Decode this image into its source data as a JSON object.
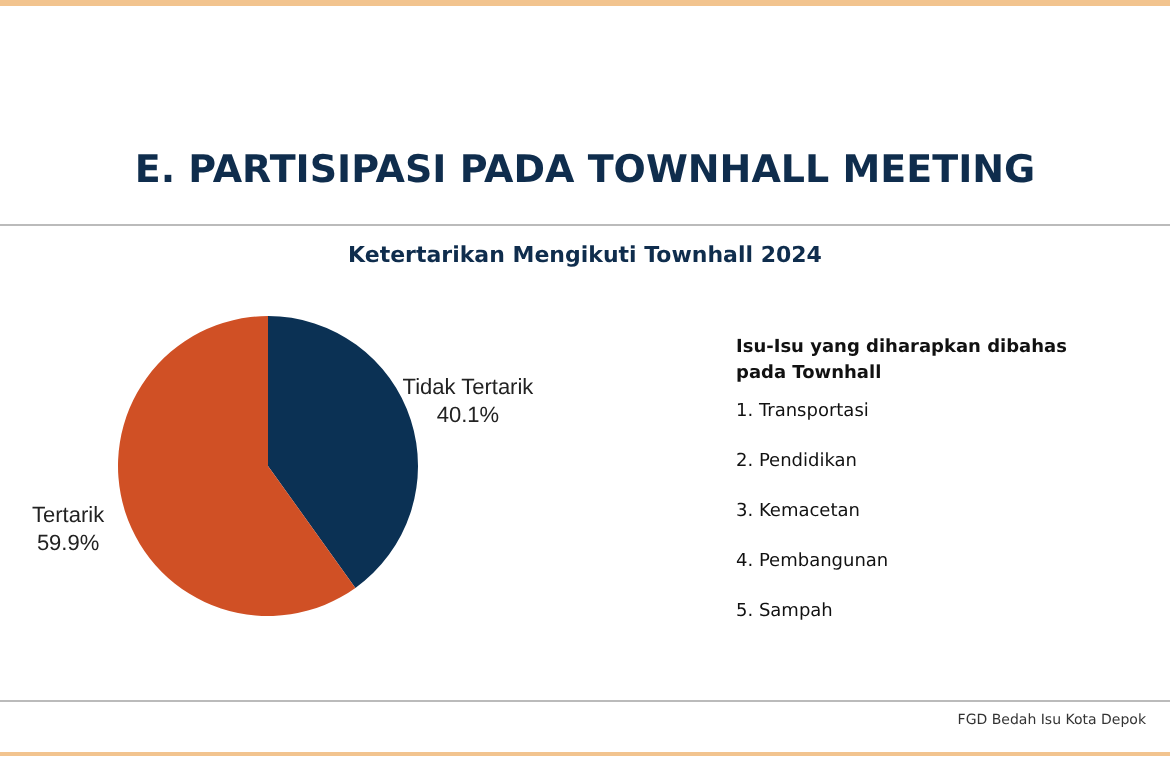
{
  "chart_data": {
    "type": "pie",
    "title": "E. PARTISIPASI PADA TOWNHALL MEETING",
    "subtitle": "Ketertarikan Mengikuti Townhall 2024",
    "categories": [
      "Tidak Tertarik",
      "Tertarik"
    ],
    "values": [
      40.1,
      59.9
    ],
    "colors": [
      "#0b3154",
      "#d05025"
    ],
    "value_labels": [
      "40.1%",
      "59.9%"
    ],
    "annotations": [
      "Isu-Isu yang diharapkan dibahas pada Townhall",
      "1.  Transportasi",
      "2. Pendidikan",
      "3. Kemacetan",
      "4. Pembangunan",
      "5. Sampah",
      "FGD Bedah Isu Kota Depok"
    ]
  }
}
